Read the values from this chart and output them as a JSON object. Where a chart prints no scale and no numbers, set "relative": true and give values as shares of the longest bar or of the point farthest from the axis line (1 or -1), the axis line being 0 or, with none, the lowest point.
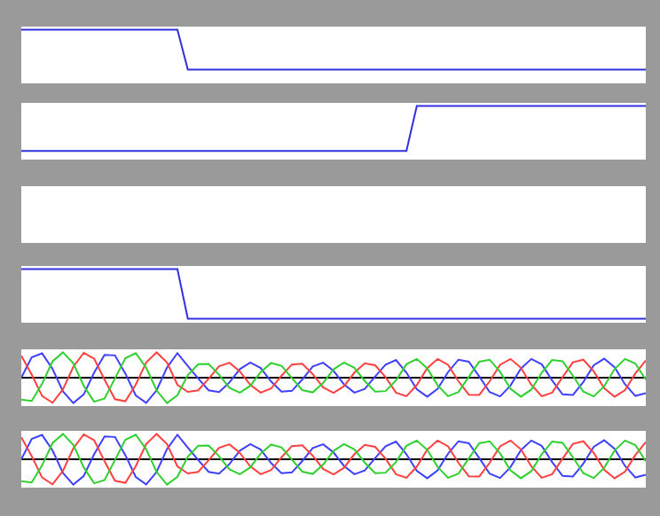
{
  "chart_data": [
    {
      "type": "line",
      "relative": true,
      "categories": [
        null,
        null,
        null,
        null,
        null,
        null,
        null,
        null,
        null,
        null,
        null,
        null,
        null,
        null,
        null,
        null,
        null,
        null,
        null,
        null,
        null,
        null,
        null,
        null,
        null,
        null,
        null,
        null,
        null,
        null,
        null,
        null,
        null,
        null,
        null,
        null,
        null,
        null,
        null,
        null,
        null,
        null,
        null,
        null,
        null,
        null,
        null,
        null,
        null,
        null,
        null,
        null,
        null,
        null,
        null,
        null,
        null,
        null,
        null,
        null,
        null
      ],
      "series": [
        {
          "color": "#3030e0",
          "values": [
            1,
            1,
            1,
            1,
            1,
            1,
            1,
            1,
            1,
            1,
            1,
            1,
            1,
            1,
            1,
            1,
            0.21,
            0.21,
            0.21,
            0.21,
            0.21,
            0.21,
            0.21,
            0.21,
            0.21,
            0.21,
            0.21,
            0.21,
            0.21,
            0.21,
            0.21,
            0.21,
            0.21,
            0.21,
            0.21,
            0.21,
            0.21,
            0.21,
            0.21,
            0.21,
            0.21,
            0.21,
            0.21,
            0.21,
            0.21,
            0.21,
            0.21,
            0.21,
            0.21,
            0.21,
            0.21,
            0.21,
            0.21,
            0.21,
            0.21,
            0.21,
            0.21,
            0.21,
            0.21,
            0.21,
            0.21
          ]
        }
      ]
    },
    {
      "type": "line",
      "relative": true,
      "categories": [
        null,
        null,
        null,
        null,
        null,
        null,
        null,
        null,
        null,
        null,
        null,
        null,
        null,
        null,
        null,
        null,
        null,
        null,
        null,
        null,
        null,
        null,
        null,
        null,
        null,
        null,
        null,
        null,
        null,
        null,
        null,
        null,
        null,
        null,
        null,
        null,
        null,
        null,
        null,
        null,
        null,
        null,
        null,
        null,
        null,
        null,
        null,
        null,
        null,
        null,
        null,
        null,
        null,
        null,
        null,
        null,
        null,
        null,
        null,
        null,
        null
      ],
      "series": [
        {
          "color": "#3030e0",
          "values": [
            0.11,
            0.11,
            0.11,
            0.11,
            0.11,
            0.11,
            0.11,
            0.11,
            0.11,
            0.11,
            0.11,
            0.11,
            0.11,
            0.11,
            0.11,
            0.11,
            0.11,
            0.11,
            0.11,
            0.11,
            0.11,
            0.11,
            0.11,
            0.11,
            0.11,
            0.11,
            0.11,
            0.11,
            0.11,
            0.11,
            0.11,
            0.11,
            0.11,
            0.11,
            0.11,
            0.11,
            0.11,
            0.11,
            1,
            1,
            1,
            1,
            1,
            1,
            1,
            1,
            1,
            1,
            1,
            1,
            1,
            1,
            1,
            1,
            1,
            1,
            1,
            1,
            1,
            1,
            1
          ]
        }
      ]
    },
    {
      "type": "other"
    },
    {
      "type": "line",
      "relative": true,
      "categories": [
        null,
        null,
        null,
        null,
        null,
        null,
        null,
        null,
        null,
        null,
        null,
        null,
        null,
        null,
        null,
        null,
        null,
        null,
        null,
        null,
        null,
        null,
        null,
        null,
        null,
        null,
        null,
        null,
        null,
        null,
        null,
        null,
        null,
        null,
        null,
        null,
        null,
        null,
        null,
        null,
        null,
        null,
        null,
        null,
        null,
        null,
        null,
        null,
        null,
        null,
        null,
        null,
        null,
        null,
        null,
        null,
        null,
        null,
        null,
        null,
        null
      ],
      "series": [
        {
          "color": "#3030e0",
          "values": [
            1,
            1,
            1,
            1,
            1,
            1,
            1,
            1,
            1,
            1,
            1,
            1,
            1,
            1,
            1,
            1,
            0.02,
            0.02,
            0.02,
            0.02,
            0.02,
            0.02,
            0.02,
            0.02,
            0.02,
            0.02,
            0.02,
            0.02,
            0.02,
            0.02,
            0.02,
            0.02,
            0.02,
            0.02,
            0.02,
            0.02,
            0.02,
            0.02,
            0.02,
            0.02,
            0.02,
            0.02,
            0.02,
            0.02,
            0.02,
            0.02,
            0.02,
            0.02,
            0.02,
            0.02,
            0.02,
            0.02,
            0.02,
            0.02,
            0.02,
            0.02,
            0.02,
            0.02,
            0.02,
            0.02,
            0.02
          ]
        }
      ]
    },
    {
      "type": "line",
      "relative": true,
      "categories": [
        null,
        null,
        null,
        null,
        null,
        null,
        null,
        null,
        null,
        null,
        null,
        null,
        null,
        null,
        null,
        null,
        null,
        null,
        null,
        null,
        null,
        null,
        null,
        null,
        null,
        null,
        null,
        null,
        null,
        null,
        null,
        null,
        null,
        null,
        null,
        null,
        null,
        null,
        null,
        null,
        null,
        null,
        null,
        null,
        null,
        null,
        null,
        null,
        null,
        null,
        null,
        null,
        null,
        null,
        null,
        null,
        null,
        null,
        null,
        null,
        null
      ],
      "series": [
        {
          "color": "#4040ff",
          "values": [
            0,
            0.8,
            0.96,
            0.35,
            -0.54,
            -1.0,
            -0.66,
            0.2,
            0.9,
            0.88,
            0.16,
            -0.7,
            -0.99,
            -0.5,
            0.4,
            0.97,
            0.46,
            -0.03,
            -0.5,
            -0.57,
            -0.19,
            0.34,
            0.6,
            0.38,
            -0.15,
            -0.55,
            -0.52,
            -0.07,
            0.44,
            0.59,
            0.27,
            -0.26,
            -0.59,
            -0.44,
            0.05,
            0.51,
            0.7,
            0.2,
            -0.46,
            -0.75,
            -0.44,
            0.22,
            0.71,
            0.63,
            0.05,
            -0.57,
            -0.74,
            -0.31,
            0.36,
            0.74,
            0.53,
            -0.11,
            -0.66,
            -0.68,
            -0.17,
            0.49,
            0.75,
            0.41,
            -0.26,
            -0.72,
            -0.61
          ]
        },
        {
          "color": "#ff4040",
          "values": [
            0.87,
            0.12,
            -0.72,
            -0.99,
            -0.46,
            0.43,
            0.98,
            0.75,
            -0.08,
            -0.85,
            -0.93,
            -0.27,
            0.6,
            1.0,
            0.6,
            -0.28,
            -0.56,
            -0.5,
            -0.04,
            0.45,
            0.59,
            0.25,
            -0.28,
            -0.59,
            -0.43,
            0.08,
            0.52,
            0.55,
            0.14,
            -0.38,
            -0.6,
            -0.34,
            0.2,
            0.57,
            0.49,
            0.02,
            -0.59,
            -0.73,
            -0.29,
            0.38,
            0.74,
            0.51,
            -0.14,
            -0.67,
            -0.68,
            -0.14,
            0.51,
            0.74,
            0.39,
            -0.28,
            -0.73,
            -0.59,
            0.02,
            0.61,
            0.71,
            0.25,
            -0.41,
            -0.75,
            -0.49,
            0.17,
            0.68
          ]
        },
        {
          "color": "#30d030",
          "values": [
            -0.87,
            -0.92,
            -0.24,
            0.64,
            1.0,
            0.57,
            -0.32,
            -0.95,
            -0.82,
            -0.03,
            0.77,
            0.97,
            0.39,
            -0.5,
            -1.0,
            -0.69,
            0.1,
            0.53,
            0.54,
            0.12,
            -0.4,
            -0.59,
            -0.32,
            0.22,
            0.58,
            0.47,
            -0.01,
            -0.49,
            -0.58,
            -0.21,
            0.33,
            0.6,
            0.39,
            -0.13,
            -0.55,
            -0.53,
            -0.11,
            0.53,
            0.74,
            0.37,
            -0.3,
            -0.73,
            -0.57,
            0.04,
            0.63,
            0.71,
            0.23,
            -0.44,
            -0.75,
            -0.47,
            0.2,
            0.7,
            0.65,
            0.08,
            -0.55,
            -0.74,
            -0.34,
            0.34,
            0.74,
            0.56,
            -0.08
          ]
        }
      ]
    },
    {
      "type": "line",
      "relative": true,
      "categories": [
        null,
        null,
        null,
        null,
        null,
        null,
        null,
        null,
        null,
        null,
        null,
        null,
        null,
        null,
        null,
        null,
        null,
        null,
        null,
        null,
        null,
        null,
        null,
        null,
        null,
        null,
        null,
        null,
        null,
        null,
        null,
        null,
        null,
        null,
        null,
        null,
        null,
        null,
        null,
        null,
        null,
        null,
        null,
        null,
        null,
        null,
        null,
        null,
        null,
        null,
        null,
        null,
        null,
        null,
        null,
        null,
        null,
        null,
        null,
        null,
        null
      ],
      "series": [
        {
          "color": "#4040ff",
          "values": [
            0,
            0.8,
            0.96,
            0.35,
            -0.54,
            -1.0,
            -0.66,
            0.2,
            0.9,
            0.88,
            0.16,
            -0.7,
            -0.99,
            -0.5,
            0.4,
            0.97,
            0.46,
            -0.03,
            -0.5,
            -0.57,
            -0.19,
            0.34,
            0.6,
            0.38,
            -0.15,
            -0.55,
            -0.52,
            -0.07,
            0.44,
            0.59,
            0.27,
            -0.26,
            -0.59,
            -0.44,
            0.05,
            0.51,
            0.7,
            0.2,
            -0.46,
            -0.75,
            -0.44,
            0.22,
            0.71,
            0.63,
            0.05,
            -0.57,
            -0.74,
            -0.31,
            0.36,
            0.74,
            0.53,
            -0.11,
            -0.66,
            -0.68,
            -0.17,
            0.49,
            0.75,
            0.41,
            -0.26,
            -0.72,
            -0.61
          ]
        },
        {
          "color": "#ff4040",
          "values": [
            0.87,
            0.12,
            -0.72,
            -0.99,
            -0.46,
            0.43,
            0.98,
            0.75,
            -0.08,
            -0.85,
            -0.93,
            -0.27,
            0.6,
            1.0,
            0.6,
            -0.28,
            -0.56,
            -0.5,
            -0.04,
            0.45,
            0.59,
            0.25,
            -0.28,
            -0.59,
            -0.43,
            0.08,
            0.52,
            0.55,
            0.14,
            -0.38,
            -0.6,
            -0.34,
            0.2,
            0.57,
            0.49,
            0.02,
            -0.59,
            -0.73,
            -0.29,
            0.38,
            0.74,
            0.51,
            -0.14,
            -0.67,
            -0.68,
            -0.14,
            0.51,
            0.74,
            0.39,
            -0.28,
            -0.73,
            -0.59,
            0.02,
            0.61,
            0.71,
            0.25,
            -0.41,
            -0.75,
            -0.49,
            0.17,
            0.68
          ]
        },
        {
          "color": "#30d030",
          "values": [
            -0.87,
            -0.92,
            -0.24,
            0.64,
            1.0,
            0.57,
            -0.32,
            -0.95,
            -0.82,
            -0.03,
            0.77,
            0.97,
            0.39,
            -0.5,
            -1.0,
            -0.69,
            0.1,
            0.53,
            0.54,
            0.12,
            -0.4,
            -0.59,
            -0.32,
            0.22,
            0.58,
            0.47,
            -0.01,
            -0.49,
            -0.58,
            -0.21,
            0.33,
            0.6,
            0.39,
            -0.13,
            -0.55,
            -0.53,
            -0.11,
            0.53,
            0.74,
            0.37,
            -0.3,
            -0.73,
            -0.57,
            0.04,
            0.63,
            0.71,
            0.23,
            -0.44,
            -0.75,
            -0.47,
            0.2,
            0.7,
            0.65,
            0.08,
            -0.55,
            -0.74,
            -0.34,
            0.34,
            0.74,
            0.56,
            -0.08
          ]
        }
      ]
    }
  ]
}
